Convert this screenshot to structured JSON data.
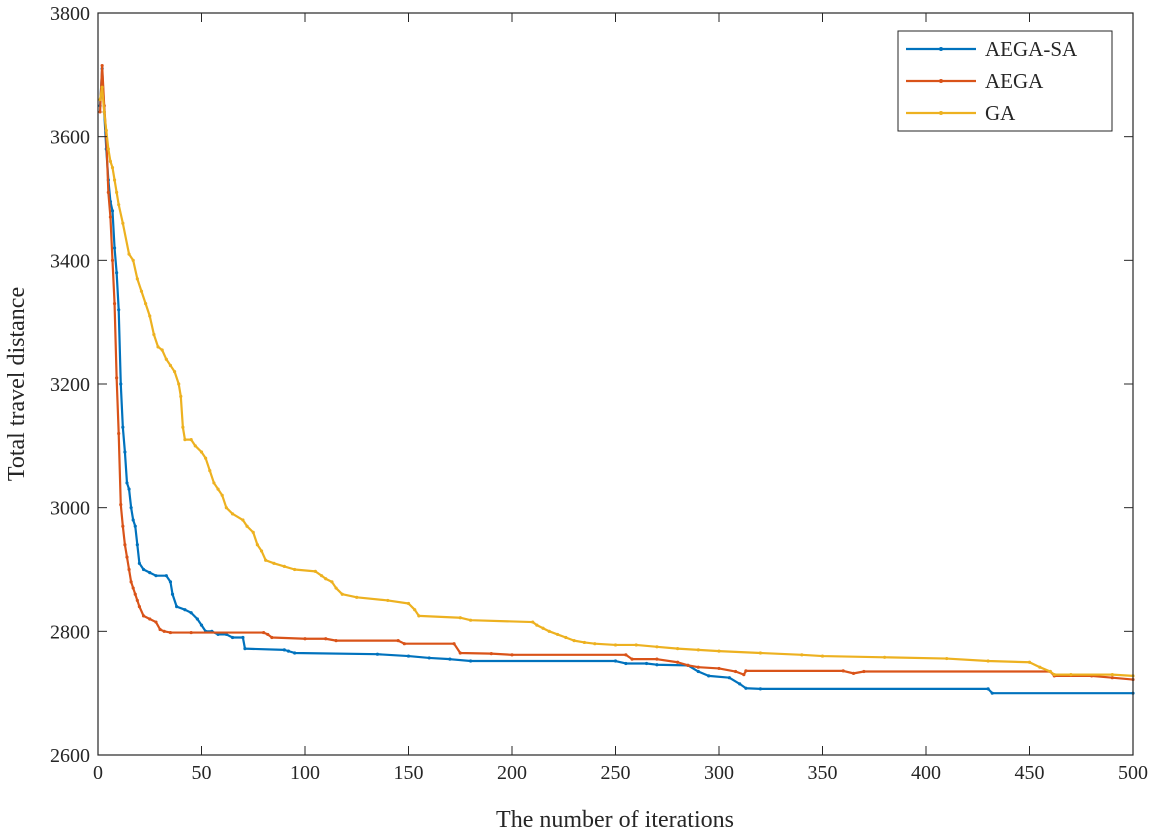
{
  "chart_data": {
    "type": "line",
    "title": "",
    "xlabel": "The number of iterations",
    "ylabel": "Total travel distance",
    "xlim": [
      0,
      500
    ],
    "ylim": [
      2600,
      3800
    ],
    "xticks": [
      "0",
      "50",
      "100",
      "150",
      "200",
      "250",
      "300",
      "350",
      "400",
      "450",
      "500"
    ],
    "yticks": [
      "2600",
      "2800",
      "3000",
      "3200",
      "3400",
      "3600",
      "3800"
    ],
    "grid": false,
    "legend_position": "top-right",
    "series": [
      {
        "name": "AEGA-SA",
        "color": "#0072BD",
        "points": [
          [
            1,
            3650
          ],
          [
            2,
            3710
          ],
          [
            3,
            3640
          ],
          [
            4,
            3580
          ],
          [
            5,
            3530
          ],
          [
            6,
            3495
          ],
          [
            7,
            3480
          ],
          [
            8,
            3420
          ],
          [
            9,
            3380
          ],
          [
            10,
            3320
          ],
          [
            11,
            3200
          ],
          [
            12,
            3130
          ],
          [
            13,
            3090
          ],
          [
            14,
            3040
          ],
          [
            15,
            3030
          ],
          [
            16,
            3000
          ],
          [
            17,
            2980
          ],
          [
            18,
            2970
          ],
          [
            19,
            2940
          ],
          [
            20,
            2910
          ],
          [
            22,
            2900
          ],
          [
            25,
            2895
          ],
          [
            28,
            2890
          ],
          [
            33,
            2890
          ],
          [
            35,
            2880
          ],
          [
            36,
            2860
          ],
          [
            38,
            2840
          ],
          [
            42,
            2835
          ],
          [
            45,
            2830
          ],
          [
            48,
            2820
          ],
          [
            50,
            2810
          ],
          [
            52,
            2800
          ],
          [
            55,
            2800
          ],
          [
            58,
            2795
          ],
          [
            62,
            2795
          ],
          [
            65,
            2790
          ],
          [
            70,
            2790
          ],
          [
            71,
            2772
          ],
          [
            90,
            2770
          ],
          [
            92,
            2768
          ],
          [
            95,
            2765
          ],
          [
            135,
            2763
          ],
          [
            150,
            2760
          ],
          [
            160,
            2757
          ],
          [
            170,
            2755
          ],
          [
            180,
            2752
          ],
          [
            250,
            2752
          ],
          [
            255,
            2748
          ],
          [
            265,
            2748
          ],
          [
            270,
            2746
          ],
          [
            285,
            2745
          ],
          [
            290,
            2735
          ],
          [
            295,
            2728
          ],
          [
            305,
            2725
          ],
          [
            310,
            2715
          ],
          [
            313,
            2708
          ],
          [
            320,
            2707
          ],
          [
            430,
            2707
          ],
          [
            432,
            2700
          ],
          [
            500,
            2700
          ]
        ]
      },
      {
        "name": "AEGA",
        "color": "#D95319",
        "points": [
          [
            1,
            3640
          ],
          [
            2,
            3715
          ],
          [
            3,
            3650
          ],
          [
            4,
            3600
          ],
          [
            5,
            3510
          ],
          [
            6,
            3470
          ],
          [
            7,
            3400
          ],
          [
            8,
            3330
          ],
          [
            9,
            3210
          ],
          [
            10,
            3120
          ],
          [
            11,
            3005
          ],
          [
            12,
            2970
          ],
          [
            13,
            2940
          ],
          [
            14,
            2920
          ],
          [
            15,
            2900
          ],
          [
            16,
            2880
          ],
          [
            17,
            2870
          ],
          [
            18,
            2860
          ],
          [
            19,
            2850
          ],
          [
            20,
            2840
          ],
          [
            22,
            2825
          ],
          [
            25,
            2820
          ],
          [
            28,
            2815
          ],
          [
            30,
            2803
          ],
          [
            32,
            2800
          ],
          [
            35,
            2798
          ],
          [
            45,
            2798
          ],
          [
            80,
            2798
          ],
          [
            82,
            2795
          ],
          [
            84,
            2790
          ],
          [
            100,
            2788
          ],
          [
            110,
            2788
          ],
          [
            115,
            2785
          ],
          [
            145,
            2785
          ],
          [
            148,
            2780
          ],
          [
            172,
            2780
          ],
          [
            175,
            2765
          ],
          [
            190,
            2764
          ],
          [
            200,
            2762
          ],
          [
            255,
            2762
          ],
          [
            258,
            2755
          ],
          [
            270,
            2755
          ],
          [
            280,
            2750
          ],
          [
            285,
            2745
          ],
          [
            290,
            2742
          ],
          [
            300,
            2740
          ],
          [
            308,
            2735
          ],
          [
            312,
            2730
          ],
          [
            313,
            2736
          ],
          [
            360,
            2736
          ],
          [
            365,
            2732
          ],
          [
            370,
            2735
          ],
          [
            460,
            2735
          ],
          [
            462,
            2728
          ],
          [
            480,
            2728
          ],
          [
            490,
            2725
          ],
          [
            500,
            2722
          ]
        ]
      },
      {
        "name": "GA",
        "color": "#EDB120",
        "points": [
          [
            1,
            3660
          ],
          [
            2,
            3680
          ],
          [
            3,
            3640
          ],
          [
            4,
            3610
          ],
          [
            5,
            3580
          ],
          [
            6,
            3560
          ],
          [
            7,
            3550
          ],
          [
            8,
            3530
          ],
          [
            9,
            3510
          ],
          [
            10,
            3490
          ],
          [
            12,
            3460
          ],
          [
            15,
            3410
          ],
          [
            17,
            3400
          ],
          [
            19,
            3370
          ],
          [
            21,
            3350
          ],
          [
            23,
            3330
          ],
          [
            25,
            3310
          ],
          [
            27,
            3280
          ],
          [
            29,
            3260
          ],
          [
            31,
            3255
          ],
          [
            33,
            3240
          ],
          [
            35,
            3230
          ],
          [
            37,
            3220
          ],
          [
            39,
            3200
          ],
          [
            40,
            3180
          ],
          [
            41,
            3130
          ],
          [
            42,
            3110
          ],
          [
            45,
            3110
          ],
          [
            47,
            3100
          ],
          [
            50,
            3090
          ],
          [
            52,
            3080
          ],
          [
            54,
            3060
          ],
          [
            56,
            3040
          ],
          [
            58,
            3030
          ],
          [
            60,
            3020
          ],
          [
            62,
            3000
          ],
          [
            65,
            2990
          ],
          [
            70,
            2980
          ],
          [
            72,
            2970
          ],
          [
            75,
            2960
          ],
          [
            77,
            2940
          ],
          [
            79,
            2930
          ],
          [
            81,
            2915
          ],
          [
            85,
            2910
          ],
          [
            90,
            2905
          ],
          [
            95,
            2900
          ],
          [
            105,
            2897
          ],
          [
            108,
            2890
          ],
          [
            110,
            2885
          ],
          [
            113,
            2880
          ],
          [
            115,
            2870
          ],
          [
            118,
            2860
          ],
          [
            125,
            2855
          ],
          [
            140,
            2850
          ],
          [
            150,
            2845
          ],
          [
            153,
            2835
          ],
          [
            155,
            2825
          ],
          [
            175,
            2822
          ],
          [
            180,
            2818
          ],
          [
            210,
            2815
          ],
          [
            212,
            2810
          ],
          [
            215,
            2805
          ],
          [
            218,
            2800
          ],
          [
            222,
            2795
          ],
          [
            226,
            2790
          ],
          [
            230,
            2785
          ],
          [
            235,
            2782
          ],
          [
            240,
            2780
          ],
          [
            250,
            2778
          ],
          [
            260,
            2778
          ],
          [
            270,
            2775
          ],
          [
            280,
            2772
          ],
          [
            290,
            2770
          ],
          [
            300,
            2768
          ],
          [
            320,
            2765
          ],
          [
            340,
            2762
          ],
          [
            350,
            2760
          ],
          [
            380,
            2758
          ],
          [
            410,
            2756
          ],
          [
            430,
            2752
          ],
          [
            450,
            2750
          ],
          [
            455,
            2742
          ],
          [
            460,
            2735
          ],
          [
            462,
            2730
          ],
          [
            470,
            2730
          ],
          [
            490,
            2730
          ],
          [
            500,
            2728
          ]
        ]
      }
    ]
  }
}
